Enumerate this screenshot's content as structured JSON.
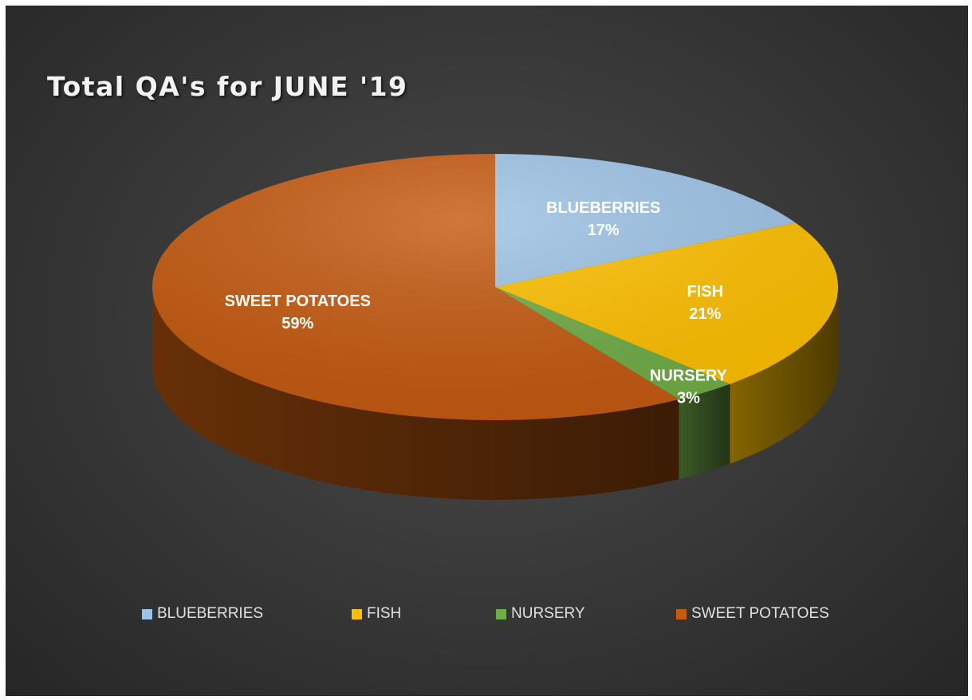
{
  "chart_data": {
    "type": "pie",
    "title": "Total QA's for JUNE '19",
    "style": "3d",
    "categories": [
      "BLUEBERRIES",
      "FISH",
      "NURSERY",
      "SWEET POTATOES"
    ],
    "values": [
      17,
      21,
      3,
      59
    ],
    "value_labels": [
      "17%",
      "21%",
      "3%",
      "59%"
    ],
    "colors": [
      "#9DC3E6",
      "#FFC000",
      "#70AD47",
      "#C55A11"
    ],
    "legend_position": "bottom",
    "data_labels_shown": true
  }
}
